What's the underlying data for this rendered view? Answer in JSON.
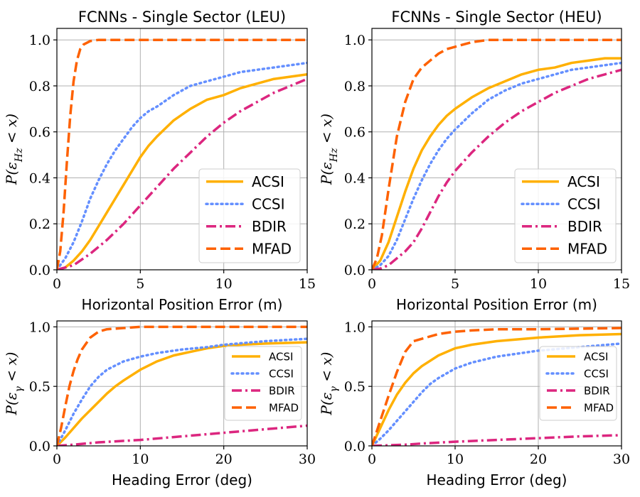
{
  "chart_data": [
    {
      "type": "line",
      "title": "FCNNs - Single Sector (LEU)",
      "xlabel": "Horizontal Position Error (m)",
      "ylabel": "P(ε_Hz < x)",
      "xlim": [
        0,
        15
      ],
      "ylim": [
        0,
        1.05
      ],
      "xticks": [
        "0",
        "5",
        "10",
        "15"
      ],
      "yticks": [
        "0.0",
        "0.2",
        "0.4",
        "0.6",
        "0.8",
        "1.0"
      ],
      "grid": true,
      "legend_position": "lower-right",
      "series": [
        {
          "name": "ACSI",
          "x": [
            0,
            0.5,
            1,
            1.5,
            2,
            2.5,
            3,
            3.5,
            4,
            4.5,
            5,
            5.5,
            6,
            7,
            8,
            9,
            10,
            11,
            12,
            13,
            14,
            15
          ],
          "values": [
            0,
            0.01,
            0.04,
            0.08,
            0.13,
            0.19,
            0.25,
            0.31,
            0.37,
            0.43,
            0.49,
            0.54,
            0.58,
            0.65,
            0.7,
            0.74,
            0.76,
            0.79,
            0.81,
            0.83,
            0.84,
            0.85
          ]
        },
        {
          "name": "CCSI",
          "x": [
            0,
            0.5,
            1,
            1.5,
            2,
            2.5,
            3,
            3.5,
            4,
            4.5,
            5,
            5.5,
            6,
            7,
            8,
            9,
            10,
            11,
            12,
            13,
            14,
            15
          ],
          "values": [
            0,
            0.05,
            0.12,
            0.21,
            0.31,
            0.39,
            0.46,
            0.52,
            0.57,
            0.62,
            0.66,
            0.69,
            0.71,
            0.76,
            0.8,
            0.82,
            0.84,
            0.86,
            0.87,
            0.88,
            0.89,
            0.9
          ]
        },
        {
          "name": "BDIR",
          "x": [
            0,
            1,
            2,
            3,
            4,
            5,
            6,
            7,
            8,
            9,
            10,
            11,
            12,
            13,
            14,
            15
          ],
          "values": [
            0,
            0.02,
            0.07,
            0.13,
            0.2,
            0.28,
            0.36,
            0.44,
            0.51,
            0.58,
            0.64,
            0.69,
            0.73,
            0.77,
            0.8,
            0.83
          ]
        },
        {
          "name": "MFAD",
          "x": [
            0,
            0.2,
            0.4,
            0.6,
            0.8,
            1,
            1.2,
            1.4,
            1.6,
            2,
            2.5,
            3,
            4,
            6,
            10,
            15
          ],
          "values": [
            0,
            0.08,
            0.25,
            0.47,
            0.67,
            0.82,
            0.91,
            0.96,
            0.98,
            0.995,
            1.0,
            1.0,
            1.0,
            1.0,
            1.0,
            1.0
          ]
        }
      ]
    },
    {
      "type": "line",
      "title": "FCNNs - Single Sector (HEU)",
      "xlabel": "Horizontal Position Error (m)",
      "ylabel": "P(ε_Hz < x)",
      "xlim": [
        0,
        15
      ],
      "ylim": [
        0,
        1.05
      ],
      "xticks": [
        "0",
        "5",
        "10",
        "15"
      ],
      "yticks": [
        "0.0",
        "0.2",
        "0.4",
        "0.6",
        "0.8",
        "1.0"
      ],
      "grid": true,
      "legend_position": "lower-right",
      "series": [
        {
          "name": "ACSI",
          "x": [
            0,
            0.5,
            1,
            1.5,
            2,
            2.5,
            3,
            3.5,
            4,
            4.5,
            5,
            6,
            7,
            8,
            9,
            10,
            11,
            12,
            13,
            14,
            15
          ],
          "values": [
            0,
            0.04,
            0.12,
            0.23,
            0.34,
            0.44,
            0.52,
            0.58,
            0.63,
            0.67,
            0.7,
            0.75,
            0.79,
            0.82,
            0.85,
            0.87,
            0.88,
            0.9,
            0.91,
            0.92,
            0.92
          ]
        },
        {
          "name": "CCSI",
          "x": [
            0,
            0.5,
            1,
            1.5,
            2,
            2.5,
            3,
            3.5,
            4,
            4.5,
            5,
            6,
            7,
            8,
            9,
            10,
            11,
            12,
            13,
            14,
            15
          ],
          "values": [
            0,
            0.02,
            0.06,
            0.13,
            0.22,
            0.31,
            0.39,
            0.46,
            0.52,
            0.57,
            0.61,
            0.68,
            0.74,
            0.78,
            0.81,
            0.83,
            0.85,
            0.87,
            0.88,
            0.89,
            0.9
          ]
        },
        {
          "name": "BDIR",
          "x": [
            0,
            0.5,
            1,
            1.5,
            2,
            2.5,
            3,
            3.5,
            4,
            4.5,
            5,
            6,
            7,
            8,
            9,
            10,
            11,
            12,
            13,
            14,
            15
          ],
          "values": [
            0,
            0.005,
            0.02,
            0.05,
            0.08,
            0.12,
            0.18,
            0.25,
            0.32,
            0.38,
            0.43,
            0.51,
            0.58,
            0.64,
            0.69,
            0.73,
            0.77,
            0.8,
            0.83,
            0.85,
            0.87
          ]
        },
        {
          "name": "MFAD",
          "x": [
            0,
            0.3,
            0.6,
            1,
            1.5,
            2,
            2.5,
            3,
            3.5,
            4,
            4.5,
            5,
            6,
            7,
            8,
            10,
            15
          ],
          "values": [
            0,
            0.05,
            0.15,
            0.35,
            0.58,
            0.73,
            0.83,
            0.88,
            0.91,
            0.94,
            0.96,
            0.97,
            0.99,
            1.0,
            1.0,
            1.0,
            1.0
          ]
        }
      ]
    },
    {
      "type": "line",
      "title": "",
      "xlabel": "Heading Error (deg)",
      "ylabel": "P(ε_γ < x)",
      "xlim": [
        0,
        30
      ],
      "ylim": [
        0,
        1.05
      ],
      "xticks": [
        "0",
        "10",
        "20",
        "30"
      ],
      "yticks": [
        "0.0",
        "0.5",
        "1.0"
      ],
      "grid": true,
      "legend_position": "lower-right",
      "series": [
        {
          "name": "ACSI",
          "x": [
            0,
            1,
            2,
            3,
            4,
            5,
            6,
            7,
            8,
            10,
            12,
            14,
            16,
            18,
            20,
            22,
            25,
            30
          ],
          "values": [
            0,
            0.07,
            0.15,
            0.23,
            0.3,
            0.37,
            0.44,
            0.5,
            0.55,
            0.64,
            0.71,
            0.76,
            0.79,
            0.82,
            0.84,
            0.85,
            0.86,
            0.87
          ]
        },
        {
          "name": "CCSI",
          "x": [
            0,
            1,
            2,
            3,
            4,
            5,
            6,
            8,
            10,
            12,
            15,
            18,
            20,
            25,
            30
          ],
          "values": [
            0,
            0.13,
            0.27,
            0.39,
            0.5,
            0.58,
            0.64,
            0.71,
            0.75,
            0.78,
            0.81,
            0.83,
            0.85,
            0.88,
            0.9
          ]
        },
        {
          "name": "BDIR",
          "x": [
            0,
            2,
            5,
            10,
            15,
            20,
            25,
            30
          ],
          "values": [
            0,
            0.01,
            0.03,
            0.05,
            0.08,
            0.11,
            0.14,
            0.17
          ]
        },
        {
          "name": "MFAD",
          "x": [
            0,
            0.5,
            1,
            1.5,
            2,
            2.5,
            3,
            4,
            5,
            6,
            8,
            10,
            15,
            30
          ],
          "values": [
            0,
            0.15,
            0.33,
            0.5,
            0.63,
            0.73,
            0.81,
            0.91,
            0.96,
            0.98,
            0.99,
            1.0,
            1.0,
            1.0
          ]
        }
      ]
    },
    {
      "type": "line",
      "title": "",
      "xlabel": "Heading Error (deg)",
      "ylabel": "P(ε_γ < x)",
      "xlim": [
        0,
        30
      ],
      "ylim": [
        0,
        1.05
      ],
      "xticks": [
        "0",
        "10",
        "20",
        "30"
      ],
      "yticks": [
        "0.0",
        "0.5",
        "1.0"
      ],
      "grid": true,
      "legend_position": "lower-right",
      "series": [
        {
          "name": "ACSI",
          "x": [
            0,
            1,
            2,
            3,
            4,
            5,
            6,
            8,
            10,
            12,
            15,
            20,
            25,
            30
          ],
          "values": [
            0,
            0.15,
            0.3,
            0.43,
            0.53,
            0.61,
            0.67,
            0.76,
            0.82,
            0.85,
            0.88,
            0.91,
            0.93,
            0.94
          ]
        },
        {
          "name": "CCSI",
          "x": [
            0,
            1,
            2,
            3,
            4,
            5,
            6,
            7,
            8,
            10,
            12,
            15,
            20,
            25,
            30
          ],
          "values": [
            0,
            0.06,
            0.13,
            0.21,
            0.29,
            0.37,
            0.45,
            0.52,
            0.57,
            0.65,
            0.7,
            0.75,
            0.8,
            0.83,
            0.86
          ]
        },
        {
          "name": "BDIR",
          "x": [
            0,
            2,
            4,
            6,
            10,
            15,
            20,
            25,
            30
          ],
          "values": [
            0,
            0.005,
            0.01,
            0.02,
            0.035,
            0.05,
            0.065,
            0.08,
            0.09
          ]
        },
        {
          "name": "MFAD",
          "x": [
            0,
            1,
            2,
            3,
            4,
            5,
            6,
            8,
            10,
            12,
            15,
            20,
            30
          ],
          "values": [
            0,
            0.21,
            0.42,
            0.62,
            0.79,
            0.88,
            0.9,
            0.94,
            0.96,
            0.97,
            0.98,
            0.98,
            0.99
          ]
        }
      ]
    }
  ],
  "colors": {
    "ACSI": "#ffb000",
    "CCSI": "#648fff",
    "BDIR": "#dc267f",
    "MFAD": "#fe6100",
    "grid": "#b0b0b0"
  }
}
